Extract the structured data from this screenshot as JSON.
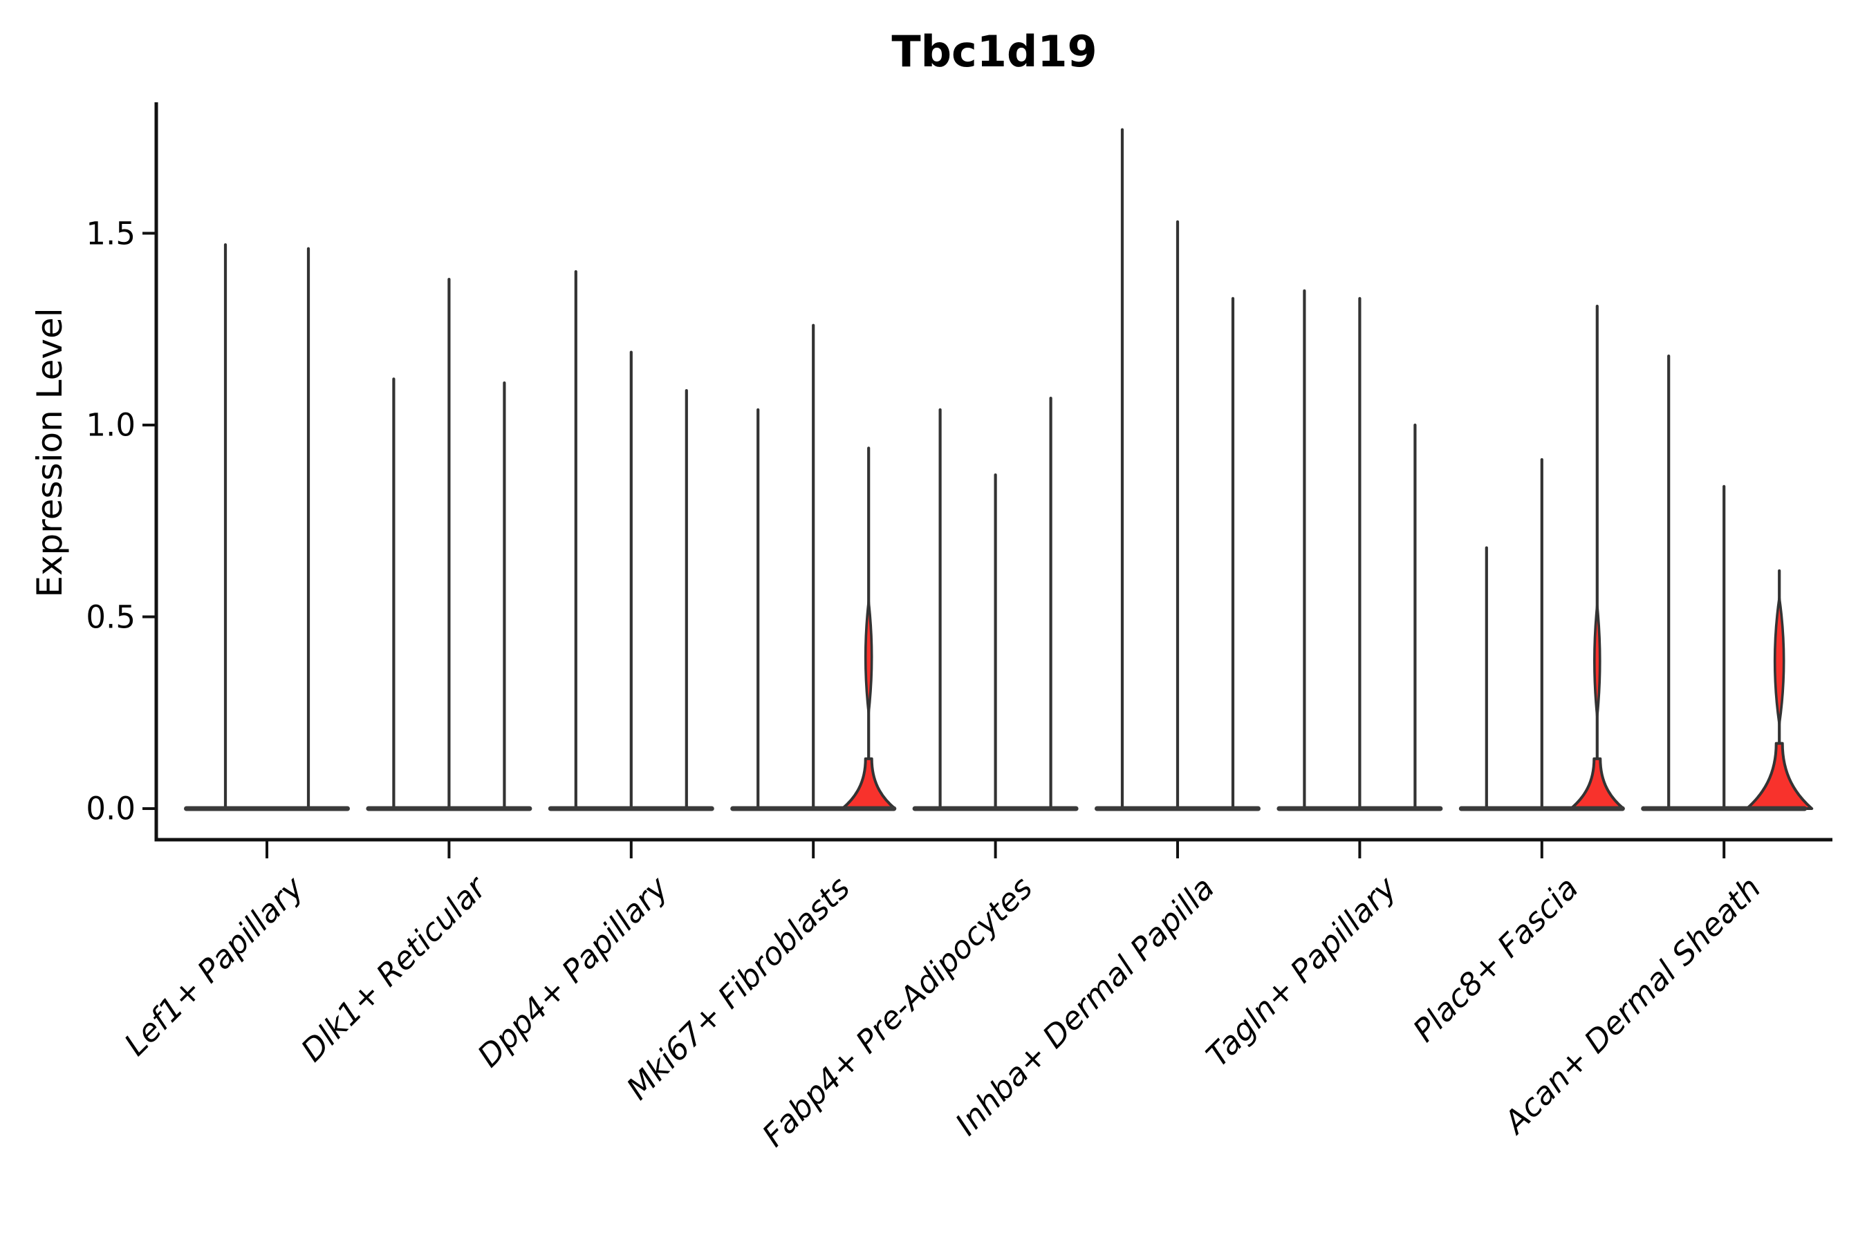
{
  "title": "Tbc1d19",
  "colors": {
    "expressed_fill": "#F8322C",
    "violin_line": "#333333",
    "spine": "#111111",
    "text": "#000000",
    "background": "#ffffff"
  },
  "chart_data": {
    "type": "violin",
    "title": "Tbc1d19",
    "xlabel": "",
    "ylabel": "Expression Level",
    "ytick_labels": [
      "0.0",
      "0.5",
      "1.0",
      "1.5"
    ],
    "ytick_values": [
      0.0,
      0.5,
      1.0,
      1.5
    ],
    "ylim": [
      -0.08,
      1.84
    ],
    "grid": false,
    "legend": "none",
    "categories": [
      "Lef1+ Papillary",
      "Dlk1+ Reticular",
      "Dpp4+ Papillary",
      "Mki67+ Fibroblasts",
      "Fabp4+ Pre-Adipocytes",
      "Inhba+ Dermal Papilla",
      "Tagln+ Papillary",
      "Plac8+ Fascia",
      "Acan+ Dermal Sheath"
    ],
    "groups": [
      {
        "name": "Lef1+ Papillary",
        "violins": [
          {
            "max": 1.47,
            "expressed": false
          },
          {
            "max": 1.46,
            "expressed": false
          }
        ]
      },
      {
        "name": "Dlk1+ Reticular",
        "violins": [
          {
            "max": 1.12,
            "expressed": false
          },
          {
            "max": 1.38,
            "expressed": false
          },
          {
            "max": 1.11,
            "expressed": false
          }
        ]
      },
      {
        "name": "Dpp4+ Papillary",
        "violins": [
          {
            "max": 1.4,
            "expressed": false
          },
          {
            "max": 1.19,
            "expressed": false
          },
          {
            "max": 1.09,
            "expressed": false
          }
        ]
      },
      {
        "name": "Mki67+ Fibroblasts",
        "violins": [
          {
            "max": 1.04,
            "expressed": false
          },
          {
            "max": 1.26,
            "expressed": false
          },
          {
            "max": 0.94,
            "expressed": true,
            "bulge_top": 0.13,
            "bulge_halfwidth": 38,
            "lens": [
              0.25,
              0.54
            ],
            "lens_halfwidth": 9
          }
        ]
      },
      {
        "name": "Fabp4+ Pre-Adipocytes",
        "violins": [
          {
            "max": 1.04,
            "expressed": false
          },
          {
            "max": 0.87,
            "expressed": false
          },
          {
            "max": 1.07,
            "expressed": false
          }
        ]
      },
      {
        "name": "Inhba+ Dermal Papilla",
        "violins": [
          {
            "max": 1.77,
            "expressed": false
          },
          {
            "max": 1.53,
            "expressed": false
          },
          {
            "max": 1.33,
            "expressed": false
          }
        ]
      },
      {
        "name": "Tagln+ Papillary",
        "violins": [
          {
            "max": 1.35,
            "expressed": false
          },
          {
            "max": 1.33,
            "expressed": false
          },
          {
            "max": 1.0,
            "expressed": false
          }
        ]
      },
      {
        "name": "Plac8+ Fascia",
        "violins": [
          {
            "max": 0.68,
            "expressed": false
          },
          {
            "max": 0.91,
            "expressed": false
          },
          {
            "max": 1.31,
            "expressed": true,
            "bulge_top": 0.13,
            "bulge_halfwidth": 38,
            "lens": [
              0.24,
              0.53
            ],
            "lens_halfwidth": 8
          }
        ]
      },
      {
        "name": "Acan+ Dermal Sheath",
        "violins": [
          {
            "max": 1.18,
            "expressed": false
          },
          {
            "max": 0.84,
            "expressed": false
          },
          {
            "max": 0.62,
            "expressed": true,
            "bulge_top": 0.17,
            "bulge_halfwidth": 47,
            "lens": [
              0.22,
              0.55
            ],
            "lens_halfwidth": 13
          }
        ]
      }
    ]
  }
}
